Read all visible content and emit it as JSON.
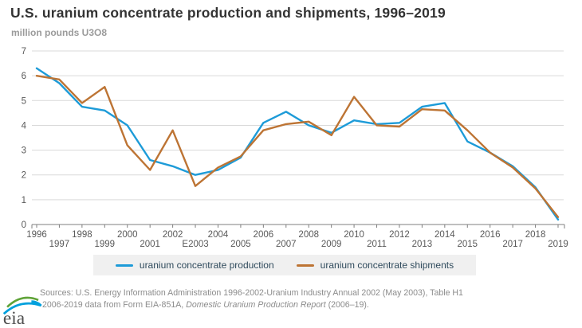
{
  "header": {
    "title": "U.S. uranium concentrate production and shipments, 1996–2019",
    "subtitle": "million pounds U3O8"
  },
  "chart_data": {
    "type": "line",
    "title": "U.S. uranium concentrate production and shipments, 1996–2019",
    "ylabel": "million pounds U3O8",
    "xlabel": "",
    "ylim": [
      0,
      7
    ],
    "y_ticks": [
      0,
      1,
      2,
      3,
      4,
      5,
      6,
      7
    ],
    "grid": "horizontal",
    "legend_position": "bottom",
    "x": [
      1996,
      1997,
      1998,
      1999,
      2000,
      2001,
      2002,
      2003,
      2004,
      2005,
      2006,
      2007,
      2008,
      2009,
      2010,
      2011,
      2012,
      2013,
      2014,
      2015,
      2016,
      2017,
      2018,
      2019
    ],
    "x_tick_labels": [
      "1996",
      "1997",
      "1998",
      "1999",
      "2000",
      "2001",
      "2002",
      "E2003",
      "2004",
      "2005",
      "2006",
      "2007",
      "2008",
      "2009",
      "2010",
      "2011",
      "2012",
      "2013",
      "2014",
      "2015",
      "2016",
      "2017",
      "2018",
      "2019"
    ],
    "series": [
      {
        "name": "uranium concentrate production",
        "color": "#1d9bd8",
        "values": [
          6.3,
          5.7,
          4.75,
          4.6,
          4.0,
          2.6,
          2.35,
          2.0,
          2.2,
          2.7,
          4.1,
          4.55,
          4.0,
          3.7,
          4.2,
          4.05,
          4.1,
          4.75,
          4.9,
          3.35,
          2.9,
          2.35,
          1.5,
          0.2
        ]
      },
      {
        "name": "uranium concentrate shipments",
        "color": "#bd7434",
        "values": [
          6.0,
          5.85,
          4.9,
          5.55,
          3.2,
          2.2,
          3.8,
          1.55,
          2.3,
          2.75,
          3.8,
          4.05,
          4.15,
          3.6,
          5.15,
          4.0,
          3.95,
          4.65,
          4.6,
          3.8,
          2.9,
          2.3,
          1.45,
          0.3
        ]
      }
    ],
    "axis_colors": {
      "gridline": "#d9d9d9",
      "axis_line": "#7f7f7f",
      "tick_label": "#595959"
    }
  },
  "sources": {
    "line1": "Sources: U.S. Energy Information Administration 1996-2002-Uranium Industry Annual 2002 (May 2003), Table H1",
    "line2_prefix": "2006-2019 data from Form EIA-851A, ",
    "line2_italic": "Domestic Uranium Production Report",
    "line2_suffix": " (2006–19)."
  },
  "logo": {
    "text": "eia",
    "green": "#5fa338",
    "blue": "#00a0dd",
    "text_color": "#4f4f4f"
  }
}
